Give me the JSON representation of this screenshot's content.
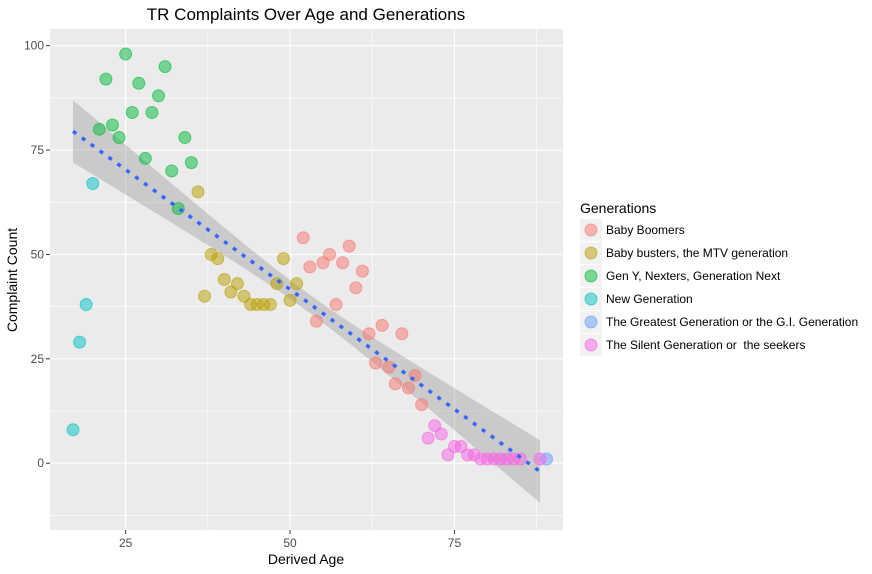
{
  "chart_data": {
    "type": "scatter",
    "title": "TR Complaints Over Age and Generations",
    "xlabel": "Derived Age",
    "ylabel": "Complaint Count",
    "xlim": [
      13.5,
      91.5
    ],
    "ylim": [
      -16,
      104
    ],
    "x_ticks": [
      25,
      50,
      75
    ],
    "y_ticks": [
      0,
      25,
      50,
      75,
      100
    ],
    "grid": true,
    "legend": {
      "title": "Generations",
      "position": "right"
    },
    "series": [
      {
        "name": "Baby Boomers",
        "color": "#F8766D",
        "points": [
          [
            52,
            54
          ],
          [
            53,
            47
          ],
          [
            54,
            34
          ],
          [
            55,
            48
          ],
          [
            56,
            50
          ],
          [
            57,
            38
          ],
          [
            58,
            48
          ],
          [
            59,
            52
          ],
          [
            60,
            42
          ],
          [
            61,
            46
          ],
          [
            62,
            31
          ],
          [
            63,
            24
          ],
          [
            64,
            33
          ],
          [
            65,
            23
          ],
          [
            66,
            19
          ],
          [
            67,
            31
          ],
          [
            68,
            18
          ],
          [
            69,
            21
          ],
          [
            70,
            14
          ]
        ]
      },
      {
        "name": "Baby busters, the MTV generation",
        "color": "#B79F00",
        "points": [
          [
            36,
            65
          ],
          [
            37,
            40
          ],
          [
            38,
            50
          ],
          [
            39,
            49
          ],
          [
            40,
            44
          ],
          [
            41,
            41
          ],
          [
            42,
            43
          ],
          [
            43,
            40
          ],
          [
            44,
            38
          ],
          [
            45,
            38
          ],
          [
            46,
            38
          ],
          [
            47,
            38
          ],
          [
            48,
            43
          ],
          [
            49,
            49
          ],
          [
            50,
            39
          ],
          [
            51,
            43
          ]
        ]
      },
      {
        "name": "Gen Y, Nexters, Generation Next",
        "color": "#00BA38",
        "points": [
          [
            21,
            80
          ],
          [
            22,
            92
          ],
          [
            23,
            81
          ],
          [
            24,
            78
          ],
          [
            25,
            98
          ],
          [
            26,
            84
          ],
          [
            27,
            91
          ],
          [
            28,
            73
          ],
          [
            29,
            84
          ],
          [
            30,
            88
          ],
          [
            31,
            95
          ],
          [
            32,
            70
          ],
          [
            33,
            61
          ],
          [
            34,
            78
          ],
          [
            35,
            72
          ]
        ]
      },
      {
        "name": "New Generation",
        "color": "#00BFC4",
        "points": [
          [
            17,
            8
          ],
          [
            18,
            29
          ],
          [
            19,
            38
          ],
          [
            20,
            67
          ]
        ]
      },
      {
        "name": "The Greatest Generation or the G.I. Generation",
        "color": "#619CFF",
        "points": [
          [
            89,
            1
          ]
        ]
      },
      {
        "name": "The Silent Generation or  the seekers",
        "color": "#F564E3",
        "points": [
          [
            71,
            6
          ],
          [
            72,
            9
          ],
          [
            73,
            7
          ],
          [
            74,
            2
          ],
          [
            75,
            4
          ],
          [
            76,
            4
          ],
          [
            77,
            2
          ],
          [
            78,
            2
          ],
          [
            79,
            1
          ],
          [
            80,
            1
          ],
          [
            81,
            1
          ],
          [
            82,
            1
          ],
          [
            83,
            1
          ],
          [
            84,
            1
          ],
          [
            85,
            1
          ],
          [
            88,
            1
          ]
        ]
      }
    ],
    "trend": {
      "method": "linear fit with confidence band",
      "color": "#3366FF",
      "band_color": "#999999",
      "x_range": [
        17,
        88
      ],
      "y_at_start": 79.5,
      "y_at_end": -2,
      "band_halfwidth_ends": 7.5,
      "band_halfwidth_center": 2.2
    },
    "colors": {
      "panel_bg": "#EBEBEB",
      "grid": "#FFFFFF"
    }
  }
}
